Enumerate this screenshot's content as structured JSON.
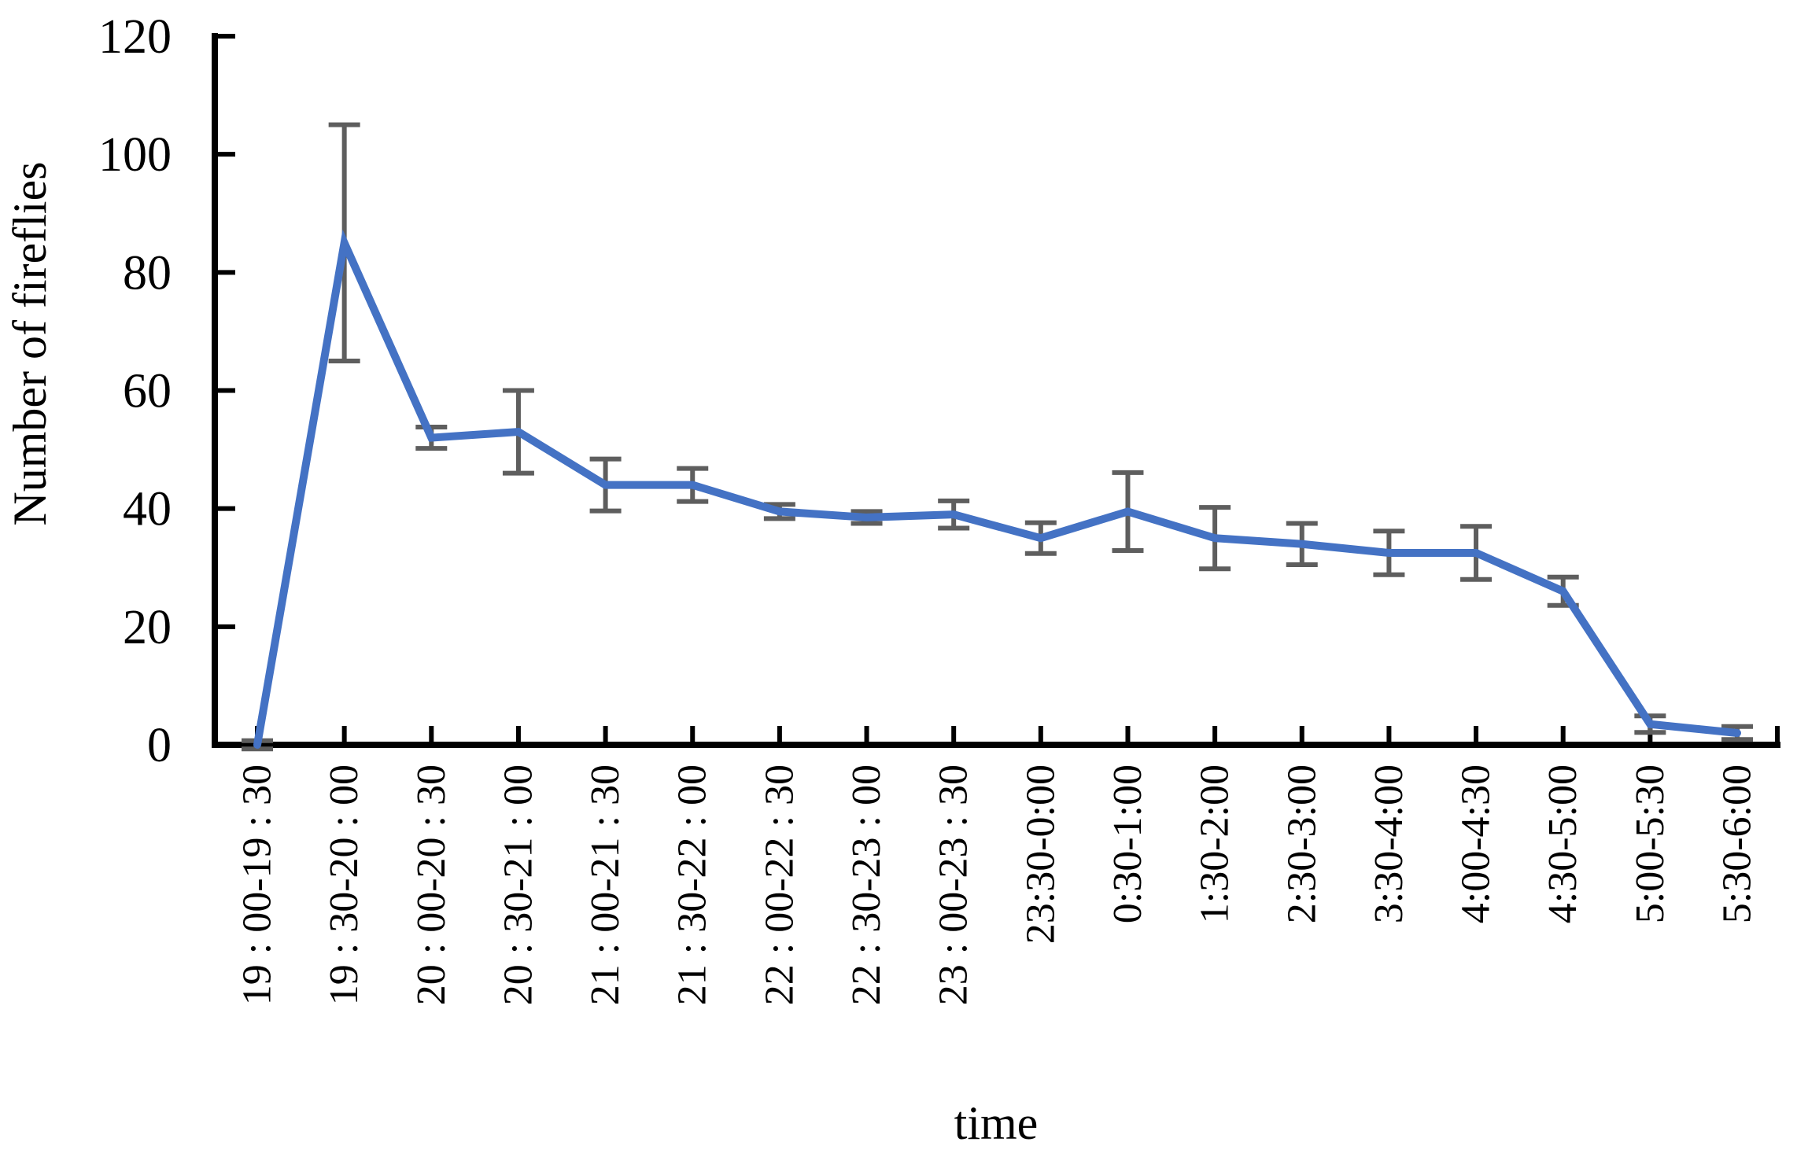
{
  "chart_data": {
    "type": "line",
    "title": "",
    "xlabel": "time",
    "ylabel": "Number of fireflies",
    "ylim": [
      0,
      120
    ],
    "yticks": [
      0,
      20,
      40,
      60,
      80,
      100,
      120
    ],
    "grid": false,
    "legend_position": "none",
    "categories": [
      "19 : 00-19 : 30",
      "19 : 30-20 : 00",
      "20 : 00-20 : 30",
      "20 : 30-21 : 00",
      "21 : 00-21 : 30",
      "21 : 30-22 : 00",
      "22 : 00-22 : 30",
      "22 : 30-23 : 00",
      "23 : 00-23 : 30",
      "23:30-0:00",
      "0:30-1:00",
      "1:30-2:00",
      "2:30-3:00",
      "3:30-4:00",
      "4:00-4:30",
      "4:30-5:00",
      "5:00-5:30",
      "5:30-6:00"
    ],
    "series": [
      {
        "name": "Number of fireflies",
        "values": [
          0,
          85,
          52,
          53,
          44,
          44,
          39.5,
          38.5,
          39,
          35,
          39.5,
          35,
          34,
          32.5,
          32.5,
          26,
          3.5,
          2
        ],
        "error_plus": [
          0.7,
          20,
          1.8,
          7,
          4.4,
          2.8,
          1.2,
          1,
          2.3,
          2.6,
          6.6,
          5.2,
          3.5,
          3.7,
          4.5,
          2.4,
          1.4,
          1.1
        ],
        "error_minus": [
          0.7,
          20,
          1.8,
          7,
          4.4,
          2.8,
          1.2,
          1,
          2.3,
          2.6,
          6.6,
          5.2,
          3.5,
          3.7,
          4.5,
          2.4,
          1.4,
          1.1
        ]
      }
    ],
    "colors": {
      "line": "#4472C4",
      "error_bar": "#5E5E5E",
      "axis": "#000000",
      "text": "#000000",
      "background": "#FFFFFF"
    }
  }
}
